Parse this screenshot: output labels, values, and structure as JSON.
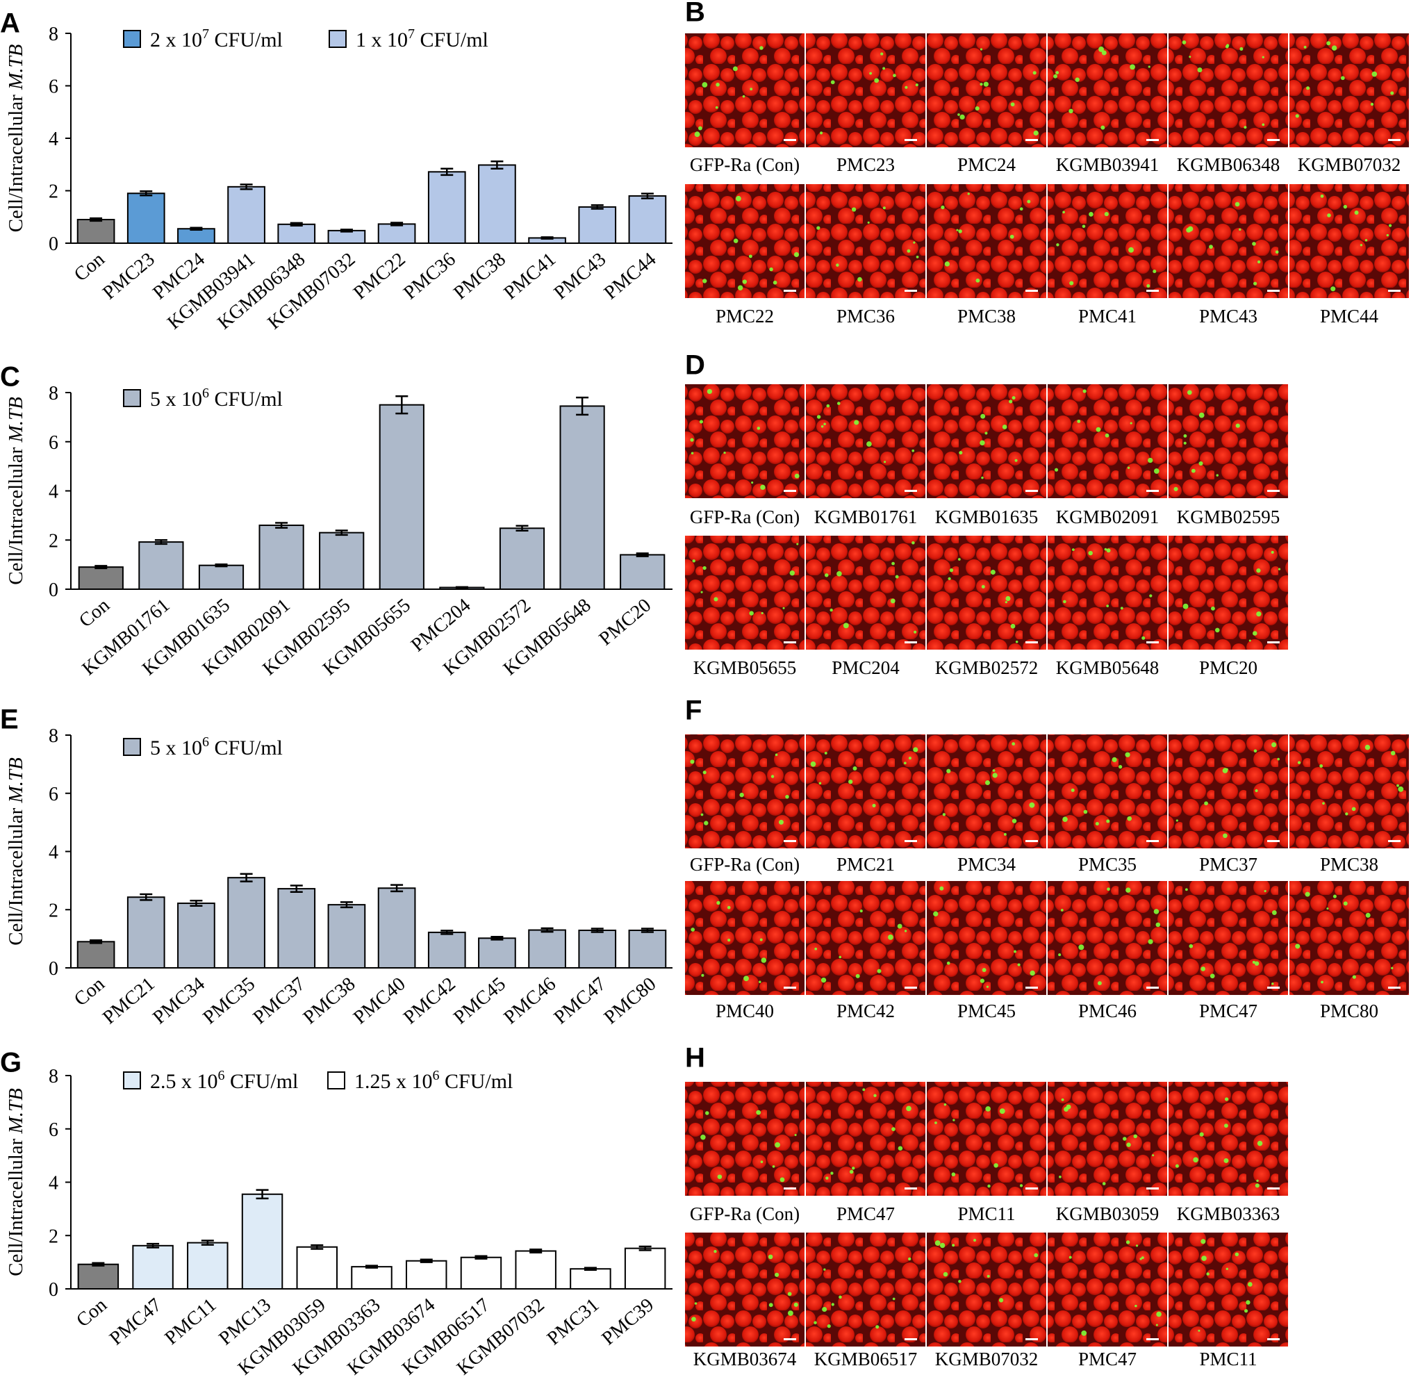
{
  "chart_data": [
    {
      "panel": "A",
      "type": "bar",
      "ylabel": "Cell/Intracellular M.TB",
      "ylabel_plain": "Cell/Intracellular ",
      "ylabel_italic": "M.TB",
      "ylim": [
        0,
        8
      ],
      "yticks": [
        0,
        2,
        4,
        6,
        8
      ],
      "categories": [
        "Con",
        "PMC23",
        "PMC24",
        "KGMB03941",
        "KGMB06348",
        "KGMB07032",
        "PMC22",
        "PMC36",
        "PMC38",
        "PMC41",
        "PMC43",
        "PMC44"
      ],
      "values": [
        0.9,
        1.9,
        0.55,
        2.15,
        0.72,
        0.48,
        0.73,
        2.72,
        2.98,
        0.2,
        1.38,
        1.8
      ],
      "errors": [
        0.05,
        0.08,
        0.04,
        0.09,
        0.05,
        0.04,
        0.05,
        0.12,
        0.14,
        0.03,
        0.07,
        0.09
      ],
      "bar_groups": [
        0,
        1,
        1,
        2,
        2,
        2,
        2,
        2,
        2,
        2,
        2,
        2
      ],
      "legend": [
        {
          "base": "2 x 10",
          "exp": "7",
          "unit": " CFU/ml",
          "color": "#5b9bd5"
        },
        {
          "base": "1 x 10",
          "exp": "7",
          "unit": " CFU/ml",
          "color": "#b4c7e7"
        }
      ],
      "group_colors": [
        "#808080",
        "#5b9bd5",
        "#b4c7e7"
      ],
      "grid": false
    },
    {
      "panel": "C",
      "type": "bar",
      "ylabel": "Cell/Intracellular M.TB",
      "ylabel_plain": "Cell/Intracellular ",
      "ylabel_italic": "M.TB",
      "ylim": [
        0,
        8
      ],
      "yticks": [
        0,
        2,
        4,
        6,
        8
      ],
      "categories": [
        "Con",
        "KGMB01761",
        "KGMB01635",
        "KGMB02091",
        "KGMB02595",
        "KGMB05655",
        "PMC204",
        "KGMB02572",
        "KGMB05648",
        "PMC20"
      ],
      "values": [
        0.9,
        1.92,
        0.97,
        2.6,
        2.3,
        7.5,
        0.07,
        2.48,
        7.45,
        1.4
      ],
      "errors": [
        0.05,
        0.08,
        0.04,
        0.1,
        0.09,
        0.35,
        0.02,
        0.1,
        0.35,
        0.06
      ],
      "bar_groups": [
        0,
        1,
        1,
        1,
        1,
        1,
        1,
        1,
        1,
        1
      ],
      "legend": [
        {
          "base": "5 x 10",
          "exp": "6",
          "unit": " CFU/ml",
          "color": "#adb9ca"
        }
      ],
      "group_colors": [
        "#808080",
        "#adb9ca"
      ],
      "grid": false
    },
    {
      "panel": "E",
      "type": "bar",
      "ylabel": "Cell/Intracellular M.TB",
      "ylabel_plain": "Cell/Intracellular ",
      "ylabel_italic": "M.TB",
      "ylim": [
        0,
        8
      ],
      "yticks": [
        0,
        2,
        4,
        6,
        8
      ],
      "categories": [
        "Con",
        "PMC21",
        "PMC34",
        "PMC35",
        "PMC37",
        "PMC38",
        "PMC40",
        "PMC42",
        "PMC45",
        "PMC46",
        "PMC47",
        "PMC80"
      ],
      "values": [
        0.9,
        2.43,
        2.22,
        3.1,
        2.72,
        2.17,
        2.74,
        1.22,
        1.02,
        1.3,
        1.29,
        1.29
      ],
      "errors": [
        0.05,
        0.1,
        0.09,
        0.13,
        0.11,
        0.09,
        0.11,
        0.06,
        0.05,
        0.06,
        0.06,
        0.06
      ],
      "bar_groups": [
        0,
        1,
        1,
        1,
        1,
        1,
        1,
        1,
        1,
        1,
        1,
        1
      ],
      "legend": [
        {
          "base": "5 x 10",
          "exp": "6",
          "unit": " CFU/ml",
          "color": "#adb9ca"
        }
      ],
      "group_colors": [
        "#808080",
        "#adb9ca"
      ],
      "grid": false
    },
    {
      "panel": "G",
      "type": "bar",
      "ylabel": "Cell/Intracellular M.TB",
      "ylabel_plain": "Cell/Intracellular ",
      "ylabel_italic": "M.TB",
      "ylim": [
        0,
        8
      ],
      "yticks": [
        0,
        2,
        4,
        6,
        8
      ],
      "categories": [
        "Con",
        "PMC47",
        "PMC11",
        "PMC13",
        "KGMB03059",
        "KGMB03363",
        "KGMB03674",
        "KGMB06517",
        "KGMB07032",
        "PMC31",
        "PMC39"
      ],
      "values": [
        0.92,
        1.62,
        1.73,
        3.55,
        1.57,
        0.83,
        1.05,
        1.18,
        1.42,
        0.75,
        1.52
      ],
      "errors": [
        0.05,
        0.07,
        0.08,
        0.16,
        0.07,
        0.04,
        0.05,
        0.05,
        0.06,
        0.04,
        0.07
      ],
      "bar_groups": [
        0,
        1,
        1,
        1,
        2,
        2,
        2,
        2,
        2,
        2,
        2
      ],
      "legend": [
        {
          "base": "2.5 x 10",
          "exp": "6",
          "unit": " CFU/ml",
          "color": "#deebf7"
        },
        {
          "base": "1.25 x 10",
          "exp": "6",
          "unit": " CFU/ml",
          "color": "#ffffff"
        }
      ],
      "group_colors": [
        "#808080",
        "#deebf7",
        "#ffffff"
      ],
      "grid": false
    }
  ],
  "image_panels": [
    {
      "panel": "B",
      "rows": [
        [
          "GFP-Ra (Con)",
          "PMC23",
          "PMC24",
          "KGMB03941",
          "KGMB06348",
          "KGMB07032"
        ],
        [
          "PMC22",
          "PMC36",
          "PMC38",
          "PMC41",
          "PMC43",
          "PMC44"
        ]
      ]
    },
    {
      "panel": "D",
      "rows": [
        [
          "GFP-Ra (Con)",
          "KGMB01761",
          "KGMB01635",
          "KGMB02091",
          "KGMB02595"
        ],
        [
          "KGMB05655",
          "PMC204",
          "KGMB02572",
          "KGMB05648",
          "PMC20"
        ]
      ]
    },
    {
      "panel": "F",
      "rows": [
        [
          "GFP-Ra (Con)",
          "PMC21",
          "PMC34",
          "PMC35",
          "PMC37",
          "PMC38"
        ],
        [
          "PMC40",
          "PMC42",
          "PMC45",
          "PMC46",
          "PMC47",
          "PMC80"
        ]
      ]
    },
    {
      "panel": "H",
      "rows": [
        [
          "GFP-Ra (Con)",
          "PMC47",
          "PMC11",
          "KGMB03059",
          "KGMB03363"
        ],
        [
          "KGMB03674",
          "KGMB06517",
          "KGMB07032",
          "PMC47",
          "PMC11"
        ]
      ]
    }
  ],
  "colors": {
    "image_red": "#d61a0c",
    "image_dark": "#3a0505",
    "fluorescence_green": "#7dff3a"
  }
}
